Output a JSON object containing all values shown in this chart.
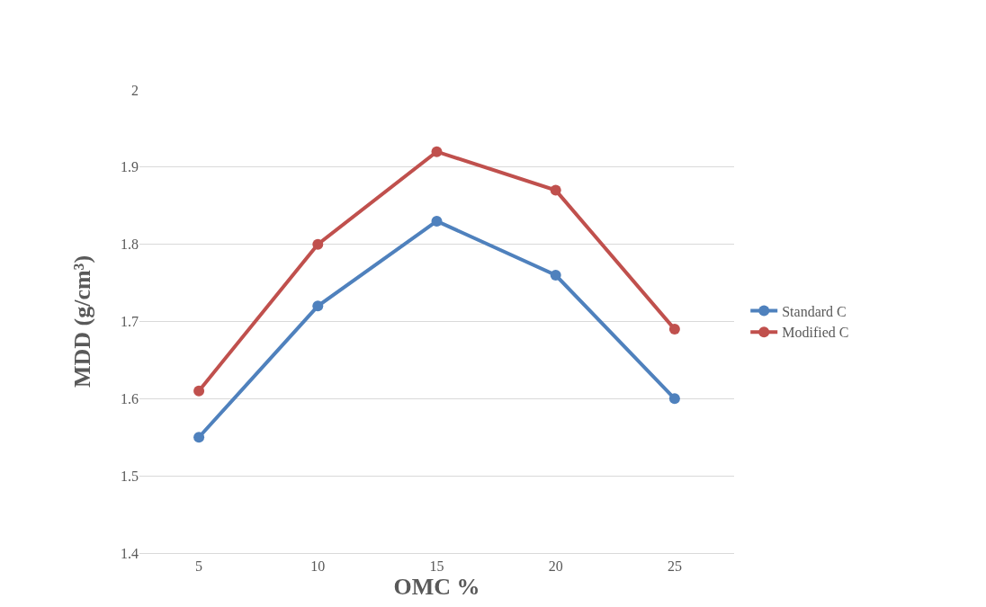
{
  "chart_data": {
    "type": "line",
    "xlabel": "OMC %",
    "ylabel": "MDD (g/cm³)",
    "categories": [
      "5",
      "10",
      "15",
      "20",
      "25"
    ],
    "series": [
      {
        "name": "Standard C",
        "color": "#4f81bd",
        "values": [
          1.55,
          1.72,
          1.83,
          1.76,
          1.6
        ]
      },
      {
        "name": "Modified C",
        "color": "#c0504d",
        "values": [
          1.61,
          1.8,
          1.92,
          1.87,
          1.69
        ]
      }
    ],
    "ylim": [
      1.4,
      2
    ],
    "yticks": [
      1.4,
      1.5,
      1.6,
      1.7,
      1.8,
      1.9,
      2
    ],
    "grid": "y",
    "legend": "right",
    "marker": "circle",
    "line_style": "solid"
  }
}
